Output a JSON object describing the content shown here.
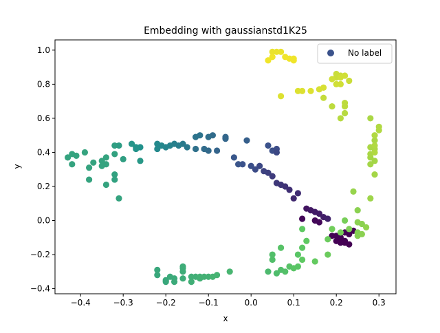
{
  "chart_data": {
    "type": "scatter",
    "title": "Embedding with gaussianstd1K25",
    "xlabel": "x",
    "ylabel": "y",
    "xlim": [
      -0.46,
      0.34
    ],
    "ylim": [
      -0.43,
      1.06
    ],
    "x_ticks": [
      -0.4,
      -0.3,
      -0.2,
      -0.1,
      0.0,
      0.1,
      0.2,
      0.3
    ],
    "x_tick_labels": [
      "−0.4",
      "−0.3",
      "−0.2",
      "−0.1",
      "0.0",
      "0.1",
      "0.2",
      "0.3"
    ],
    "y_ticks": [
      -0.4,
      -0.2,
      0.0,
      0.2,
      0.4,
      0.6,
      0.8,
      1.0
    ],
    "y_tick_labels": [
      "−0.4",
      "−0.2",
      "0.0",
      "0.2",
      "0.4",
      "0.6",
      "0.8",
      "1.0"
    ],
    "grid": false,
    "legend": {
      "placement": "top-right",
      "entries": [
        "No label"
      ],
      "marker_color": "#3b528b"
    },
    "colormap": "viridis",
    "series": [
      {
        "name": "No label",
        "points": [
          [
            0.19,
            -0.09,
            0.0
          ],
          [
            0.2,
            -0.12,
            0.0
          ],
          [
            0.21,
            -0.1,
            0.0
          ],
          [
            0.22,
            -0.12,
            0.0
          ],
          [
            0.23,
            -0.14,
            0.0
          ],
          [
            0.22,
            -0.13,
            0.0
          ],
          [
            0.21,
            -0.13,
            0.0
          ],
          [
            0.23,
            -0.08,
            0.0
          ],
          [
            0.22,
            -0.07,
            0.0
          ],
          [
            0.24,
            -0.06,
            0.0
          ],
          [
            0.2,
            -0.09,
            0.0
          ],
          [
            0.12,
            0.01,
            0.02
          ],
          [
            0.15,
            0.0,
            0.02
          ],
          [
            0.16,
            -0.01,
            0.02
          ],
          [
            0.13,
            0.07,
            0.06
          ],
          [
            0.14,
            0.06,
            0.07
          ],
          [
            0.15,
            0.05,
            0.08
          ],
          [
            0.16,
            0.04,
            0.08
          ],
          [
            0.17,
            0.02,
            0.09
          ],
          [
            0.18,
            0.01,
            0.1
          ],
          [
            0.1,
            0.13,
            0.12
          ],
          [
            0.11,
            0.16,
            0.13
          ],
          [
            0.09,
            0.18,
            0.14
          ],
          [
            0.08,
            0.2,
            0.15
          ],
          [
            0.07,
            0.21,
            0.16
          ],
          [
            0.06,
            0.22,
            0.17
          ],
          [
            0.05,
            0.26,
            0.18
          ],
          [
            0.04,
            0.28,
            0.19
          ],
          [
            0.03,
            0.29,
            0.2
          ],
          [
            0.02,
            0.32,
            0.22
          ],
          [
            0.01,
            0.3,
            0.23
          ],
          [
            0.0,
            0.32,
            0.24
          ],
          [
            -0.02,
            0.33,
            0.25
          ],
          [
            -0.03,
            0.33,
            0.26
          ],
          [
            -0.04,
            0.37,
            0.27
          ],
          [
            0.04,
            0.44,
            0.25
          ],
          [
            0.05,
            0.41,
            0.24
          ],
          [
            0.06,
            0.42,
            0.23
          ],
          [
            0.06,
            0.4,
            0.22
          ],
          [
            -0.01,
            0.47,
            0.3
          ],
          [
            -0.06,
            0.48,
            0.33
          ],
          [
            -0.06,
            0.49,
            0.33
          ],
          [
            -0.09,
            0.5,
            0.35
          ],
          [
            -0.1,
            0.49,
            0.36
          ],
          [
            -0.08,
            0.41,
            0.32
          ],
          [
            -0.1,
            0.41,
            0.34
          ],
          [
            -0.11,
            0.42,
            0.35
          ],
          [
            -0.13,
            0.42,
            0.37
          ],
          [
            -0.12,
            0.5,
            0.38
          ],
          [
            -0.13,
            0.49,
            0.38
          ],
          [
            -0.15,
            0.43,
            0.4
          ],
          [
            -0.16,
            0.45,
            0.41
          ],
          [
            -0.17,
            0.44,
            0.42
          ],
          [
            -0.18,
            0.45,
            0.43
          ],
          [
            -0.19,
            0.44,
            0.44
          ],
          [
            -0.2,
            0.43,
            0.45
          ],
          [
            -0.21,
            0.44,
            0.46
          ],
          [
            -0.22,
            0.45,
            0.47
          ],
          [
            -0.22,
            0.42,
            0.47
          ],
          [
            -0.26,
            0.43,
            0.5
          ],
          [
            -0.27,
            0.42,
            0.51
          ],
          [
            -0.28,
            0.45,
            0.52
          ],
          [
            -0.27,
            0.43,
            0.51
          ],
          [
            -0.31,
            0.44,
            0.55
          ],
          [
            -0.32,
            0.44,
            0.56
          ],
          [
            -0.32,
            0.39,
            0.57
          ],
          [
            -0.32,
            0.27,
            0.57
          ],
          [
            -0.32,
            0.24,
            0.57
          ],
          [
            -0.31,
            0.13,
            0.58
          ],
          [
            -0.26,
            0.35,
            0.53
          ],
          [
            -0.3,
            0.36,
            0.56
          ],
          [
            -0.34,
            0.33,
            0.58
          ],
          [
            -0.35,
            0.32,
            0.58
          ],
          [
            -0.34,
            0.37,
            0.58
          ],
          [
            -0.35,
            0.35,
            0.58
          ],
          [
            -0.37,
            0.34,
            0.58
          ],
          [
            -0.38,
            0.31,
            0.58
          ],
          [
            -0.39,
            0.4,
            0.58
          ],
          [
            -0.41,
            0.38,
            0.58
          ],
          [
            -0.42,
            0.39,
            0.58
          ],
          [
            -0.43,
            0.37,
            0.58
          ],
          [
            -0.42,
            0.33,
            0.58
          ],
          [
            -0.38,
            0.24,
            0.58
          ],
          [
            -0.34,
            0.21,
            0.58
          ],
          [
            -0.22,
            -0.29,
            0.6
          ],
          [
            -0.22,
            -0.32,
            0.6
          ],
          [
            -0.2,
            -0.35,
            0.6
          ],
          [
            -0.2,
            -0.36,
            0.6
          ],
          [
            -0.19,
            -0.33,
            0.61
          ],
          [
            -0.18,
            -0.34,
            0.61
          ],
          [
            -0.18,
            -0.36,
            0.61
          ],
          [
            -0.16,
            -0.34,
            0.62
          ],
          [
            -0.16,
            -0.28,
            0.62
          ],
          [
            -0.16,
            -0.3,
            0.62
          ],
          [
            -0.16,
            -0.27,
            0.62
          ],
          [
            -0.14,
            -0.33,
            0.63
          ],
          [
            -0.14,
            -0.36,
            0.63
          ],
          [
            -0.13,
            -0.33,
            0.63
          ],
          [
            -0.12,
            -0.34,
            0.64
          ],
          [
            -0.12,
            -0.33,
            0.64
          ],
          [
            -0.11,
            -0.33,
            0.64
          ],
          [
            -0.1,
            -0.33,
            0.64
          ],
          [
            -0.09,
            -0.33,
            0.65
          ],
          [
            -0.08,
            -0.32,
            0.65
          ],
          [
            -0.05,
            -0.3,
            0.66
          ],
          [
            0.04,
            -0.3,
            0.68
          ],
          [
            0.06,
            -0.31,
            0.69
          ],
          [
            0.05,
            -0.2,
            0.7
          ],
          [
            0.05,
            -0.23,
            0.7
          ],
          [
            0.07,
            -0.29,
            0.7
          ],
          [
            0.08,
            -0.3,
            0.71
          ],
          [
            0.07,
            -0.16,
            0.72
          ],
          [
            0.09,
            -0.27,
            0.72
          ],
          [
            0.1,
            -0.28,
            0.73
          ],
          [
            0.11,
            -0.2,
            0.73
          ],
          [
            0.11,
            -0.27,
            0.73
          ],
          [
            0.12,
            -0.16,
            0.74
          ],
          [
            0.12,
            -0.05,
            0.75
          ],
          [
            0.12,
            -0.23,
            0.75
          ],
          [
            0.13,
            -0.12,
            0.75
          ],
          [
            0.15,
            -0.24,
            0.76
          ],
          [
            0.18,
            -0.2,
            0.77
          ],
          [
            0.18,
            -0.11,
            0.77
          ],
          [
            0.19,
            -0.05,
            0.78
          ],
          [
            0.21,
            -0.07,
            0.79
          ],
          [
            0.22,
            0.0,
            0.79
          ],
          [
            0.23,
            -0.05,
            0.8
          ],
          [
            0.25,
            -0.09,
            0.81
          ],
          [
            0.25,
            -0.07,
            0.81
          ],
          [
            0.26,
            -0.08,
            0.82
          ],
          [
            0.25,
            0.06,
            0.82
          ],
          [
            0.25,
            -0.01,
            0.82
          ],
          [
            0.26,
            -0.02,
            0.82
          ],
          [
            0.27,
            -0.04,
            0.83
          ],
          [
            0.24,
            0.17,
            0.84
          ],
          [
            0.28,
            0.13,
            0.85
          ],
          [
            0.28,
            0.37,
            0.86
          ],
          [
            0.28,
            0.33,
            0.86
          ],
          [
            0.29,
            0.35,
            0.86
          ],
          [
            0.29,
            0.27,
            0.86
          ],
          [
            0.28,
            0.6,
            0.87
          ],
          [
            0.28,
            0.39,
            0.87
          ],
          [
            0.28,
            0.43,
            0.87
          ],
          [
            0.29,
            0.42,
            0.87
          ],
          [
            0.29,
            0.47,
            0.87
          ],
          [
            0.29,
            0.5,
            0.88
          ],
          [
            0.3,
            0.55,
            0.88
          ],
          [
            0.3,
            0.53,
            0.88
          ],
          [
            0.29,
            0.44,
            0.88
          ],
          [
            0.29,
            0.4,
            0.88
          ],
          [
            0.21,
            0.6,
            0.89
          ],
          [
            0.22,
            0.63,
            0.89
          ],
          [
            0.19,
            0.67,
            0.9
          ],
          [
            0.22,
            0.67,
            0.9
          ],
          [
            0.22,
            0.69,
            0.9
          ],
          [
            0.17,
            0.72,
            0.91
          ],
          [
            0.23,
            0.82,
            0.92
          ],
          [
            0.2,
            0.84,
            0.92
          ],
          [
            0.21,
            0.85,
            0.92
          ],
          [
            0.2,
            0.86,
            0.92
          ],
          [
            0.21,
            0.84,
            0.93
          ],
          [
            0.22,
            0.85,
            0.93
          ],
          [
            0.21,
            0.8,
            0.93
          ],
          [
            0.2,
            0.8,
            0.93
          ],
          [
            0.19,
            0.83,
            0.93
          ],
          [
            0.17,
            0.78,
            0.94
          ],
          [
            0.16,
            0.77,
            0.94
          ],
          [
            0.14,
            0.76,
            0.95
          ],
          [
            0.12,
            0.76,
            0.95
          ],
          [
            0.11,
            0.76,
            0.95
          ],
          [
            0.07,
            0.73,
            0.95
          ],
          [
            0.05,
            0.99,
            0.97
          ],
          [
            0.06,
            0.99,
            0.97
          ],
          [
            0.07,
            0.99,
            0.97
          ],
          [
            0.08,
            0.96,
            0.98
          ],
          [
            0.1,
            0.94,
            0.98
          ],
          [
            0.09,
            0.95,
            0.98
          ],
          [
            0.1,
            0.95,
            0.98
          ],
          [
            0.05,
            0.96,
            0.98
          ],
          [
            0.04,
            0.94,
            0.98
          ]
        ]
      }
    ]
  }
}
